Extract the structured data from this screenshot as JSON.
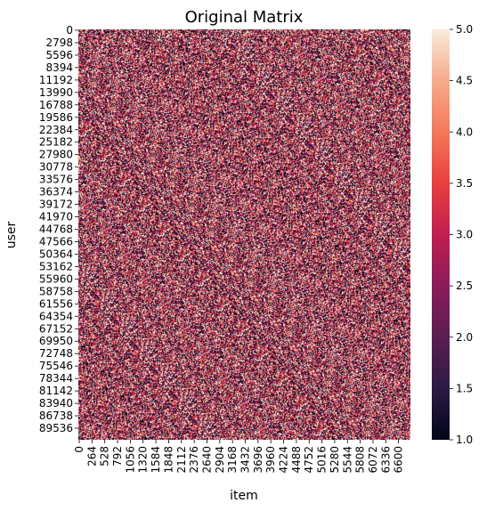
{
  "chart_data": {
    "type": "heatmap",
    "title": "Original Matrix",
    "xlabel": "item",
    "ylabel": "user",
    "colorbar": {
      "min": 1.0,
      "max": 5.0,
      "ticks": [
        "1.0",
        "1.5",
        "2.0",
        "2.5",
        "3.0",
        "3.5",
        "4.0",
        "4.5",
        "5.0"
      ],
      "colormap": "rocket",
      "colors": [
        "#03051a",
        "#2b1b43",
        "#5b1e51",
        "#8c1b5a",
        "#c01f4f",
        "#e83f3f",
        "#f4785a",
        "#f6ab8b",
        "#faebdd"
      ]
    },
    "x_ticks": [
      "0",
      "264",
      "528",
      "792",
      "1056",
      "1320",
      "1584",
      "1848",
      "2112",
      "2376",
      "2640",
      "2904",
      "3168",
      "3432",
      "3696",
      "3960",
      "4224",
      "4488",
      "4752",
      "5016",
      "5280",
      "5544",
      "5808",
      "6072",
      "6336",
      "6600"
    ],
    "y_ticks": [
      "0",
      "2798",
      "5596",
      "8394",
      "11192",
      "13990",
      "16788",
      "19586",
      "22384",
      "25182",
      "27980",
      "30778",
      "33576",
      "36374",
      "39172",
      "41970",
      "44768",
      "47566",
      "50364",
      "53162",
      "55960",
      "58758",
      "61556",
      "64354",
      "67152",
      "69950",
      "72748",
      "75546",
      "78344",
      "81142",
      "83940",
      "86738",
      "89536"
    ],
    "value_range": [
      1,
      5
    ],
    "grid": false
  }
}
